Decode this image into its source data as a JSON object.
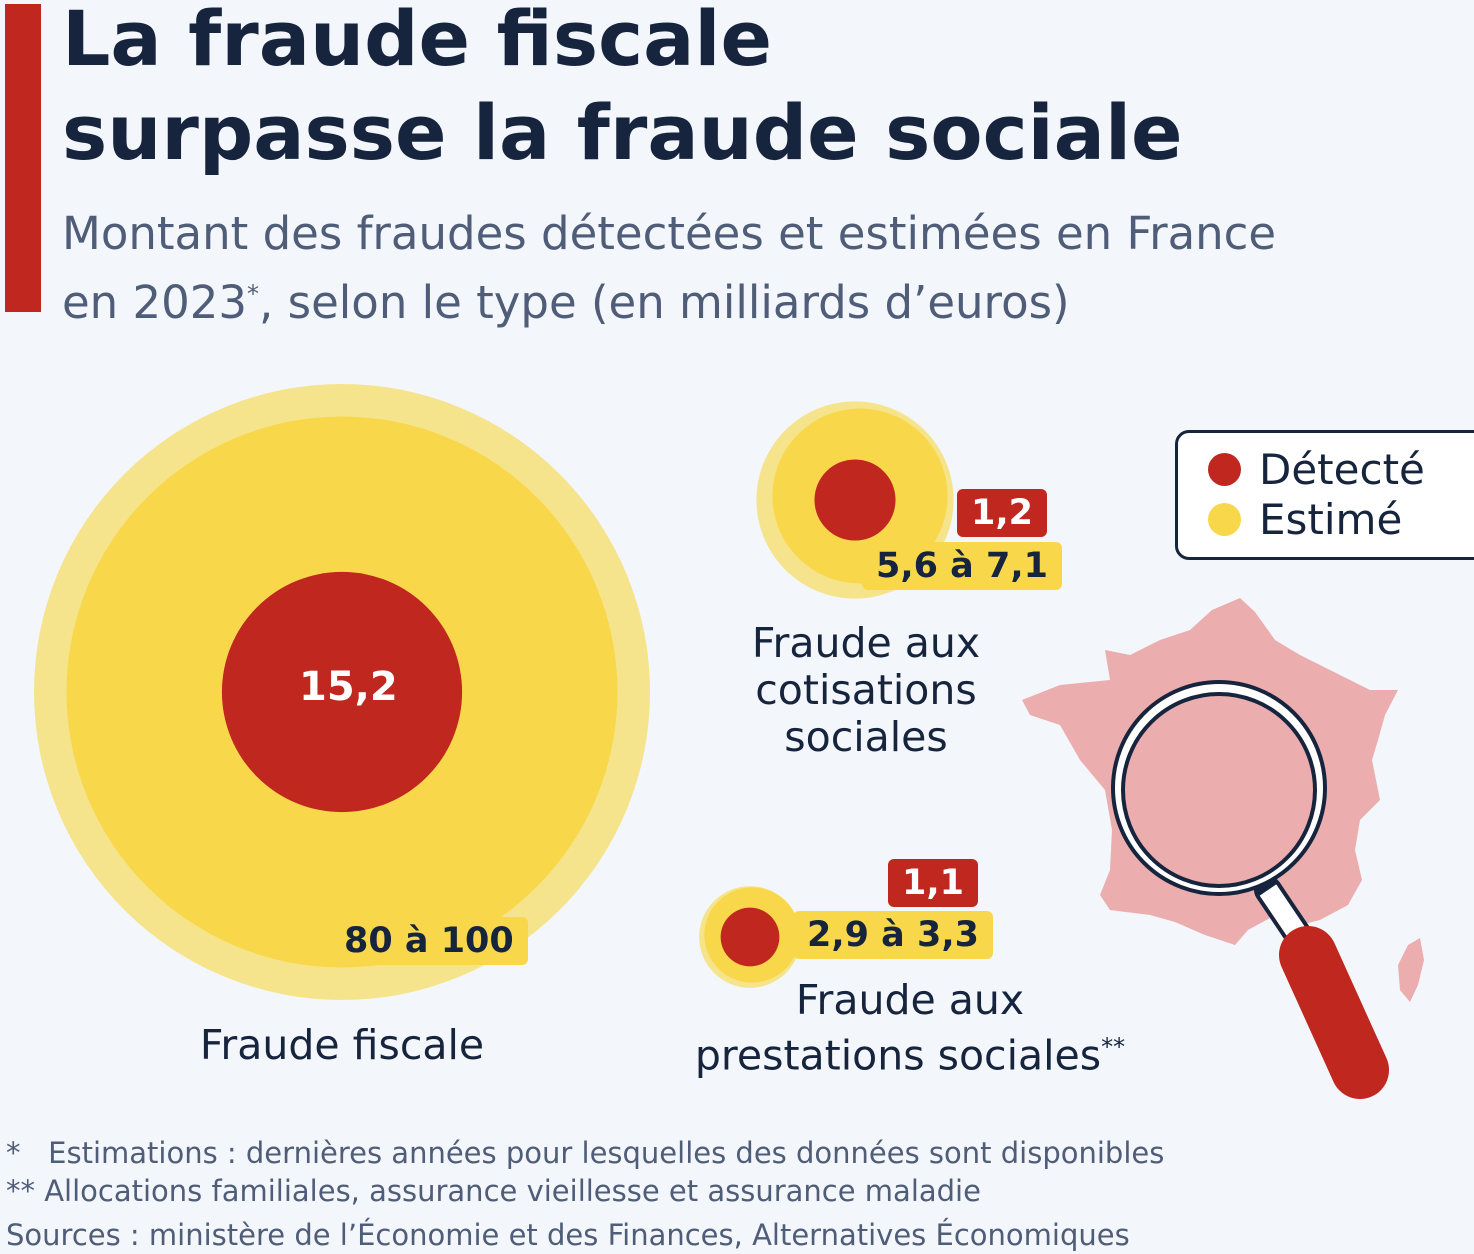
{
  "title_line1": "La fraude fiscale",
  "title_line2": "surpasse la fraude sociale",
  "subtitle_a": "Montant des fraudes détectées et estimées en France",
  "subtitle_b": "en 2023",
  "subtitle_sup": "*",
  "subtitle_c": ", selon le type (en milliards d’euros)",
  "legend": {
    "detected": "Détecté",
    "estimated": "Estimé"
  },
  "colors": {
    "detected": "#c0271f",
    "estimated": "#f8d84a",
    "estimated_light": "#f5e48c",
    "map": "#ebadae",
    "navy": "#16243d"
  },
  "chart_data": {
    "type": "bubble",
    "title": "La fraude fiscale surpasse la fraude sociale",
    "unit": "milliards d’euros",
    "series": [
      {
        "category": "Fraude fiscale",
        "detected": 15.2,
        "estimated_low": 80,
        "estimated_high": 100,
        "detected_label": "15,2",
        "estimated_label": "80 à 100"
      },
      {
        "category": "Fraude aux cotisations sociales",
        "detected": 1.2,
        "estimated_low": 5.6,
        "estimated_high": 7.1,
        "detected_label": "1,2",
        "estimated_label": "5,6 à 7,1"
      },
      {
        "category": "Fraude aux prestations sociales",
        "category_sup": "**",
        "detected": 1.1,
        "estimated_low": 2.9,
        "estimated_high": 3.3,
        "detected_label": "1,1",
        "estimated_label": "2,9 à 3,3"
      }
    ]
  },
  "labels": {
    "fiscale": "Fraude fiscale",
    "cotisations": [
      "Fraude aux",
      "cotisations",
      "sociales"
    ],
    "prestations": [
      "Fraude aux",
      "prestations sociales"
    ],
    "prestations_sup": "**"
  },
  "notes": [
    "*   Estimations : dernières années pour lesquelles des données sont disponibles",
    "** Allocations familiales, assurance vieillesse et assurance maladie",
    "Sources : ministère de l’Économie et des Finances, Alternatives Économiques"
  ]
}
